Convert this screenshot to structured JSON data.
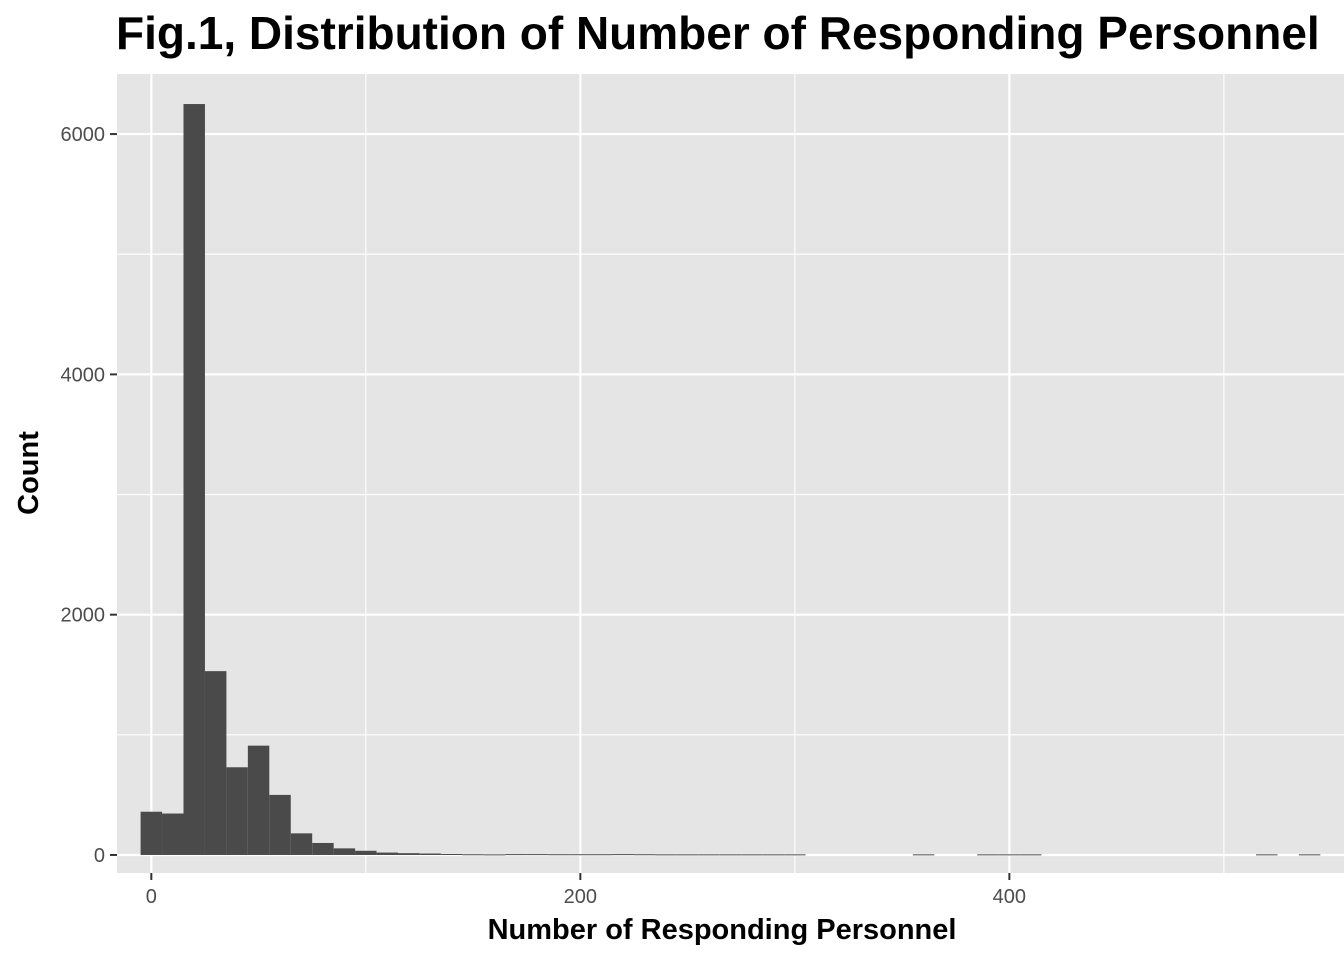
{
  "chart_data": {
    "type": "bar",
    "title": "Fig.1, Distribution of Number of Responding Personnel",
    "xlabel": "Number of Responding Personnel",
    "ylabel": "Count",
    "xlim": [
      -16,
      556
    ],
    "ylim": [
      -150,
      6500
    ],
    "x_ticks": [
      0,
      200,
      400
    ],
    "y_ticks": [
      0,
      2000,
      4000,
      6000
    ],
    "bin_width": 10,
    "bins": [
      {
        "x0": -5,
        "count": 360
      },
      {
        "x0": 5,
        "count": 345
      },
      {
        "x0": 15,
        "count": 6250
      },
      {
        "x0": 25,
        "count": 1530
      },
      {
        "x0": 35,
        "count": 730
      },
      {
        "x0": 45,
        "count": 910
      },
      {
        "x0": 55,
        "count": 500
      },
      {
        "x0": 65,
        "count": 180
      },
      {
        "x0": 75,
        "count": 100
      },
      {
        "x0": 85,
        "count": 55
      },
      {
        "x0": 95,
        "count": 35
      },
      {
        "x0": 105,
        "count": 20
      },
      {
        "x0": 115,
        "count": 15
      },
      {
        "x0": 125,
        "count": 12
      },
      {
        "x0": 135,
        "count": 8
      },
      {
        "x0": 145,
        "count": 6
      },
      {
        "x0": 155,
        "count": 5
      },
      {
        "x0": 165,
        "count": 3
      },
      {
        "x0": 175,
        "count": 3
      },
      {
        "x0": 185,
        "count": 2
      },
      {
        "x0": 195,
        "count": 2
      },
      {
        "x0": 205,
        "count": 2
      },
      {
        "x0": 215,
        "count": 3
      },
      {
        "x0": 225,
        "count": 2
      },
      {
        "x0": 235,
        "count": 1
      },
      {
        "x0": 245,
        "count": 1
      },
      {
        "x0": 255,
        "count": 1
      },
      {
        "x0": 265,
        "count": 1
      },
      {
        "x0": 275,
        "count": 1
      },
      {
        "x0": 285,
        "count": 1
      },
      {
        "x0": 295,
        "count": 1
      },
      {
        "x0": 355,
        "count": 1
      },
      {
        "x0": 385,
        "count": 1
      },
      {
        "x0": 395,
        "count": 1
      },
      {
        "x0": 405,
        "count": 1
      },
      {
        "x0": 515,
        "count": 1
      },
      {
        "x0": 535,
        "count": 1
      }
    ],
    "grid": true,
    "colors": {
      "panel": "#e5e5e5",
      "grid": "#ffffff",
      "bar": "#4a4a4a",
      "tick": "#333333"
    }
  }
}
